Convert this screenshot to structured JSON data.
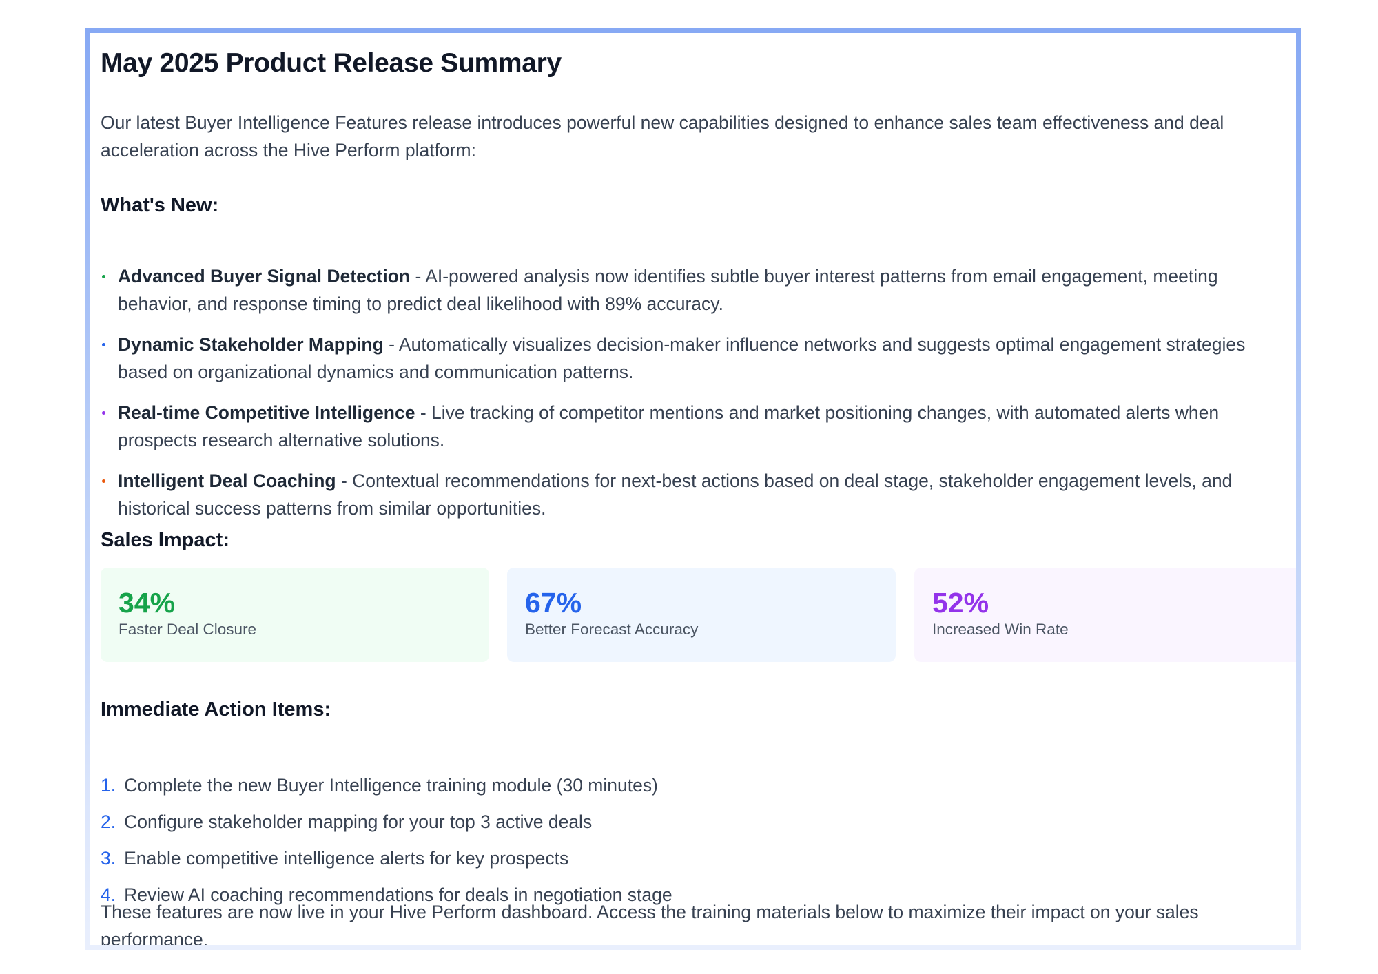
{
  "title": "May 2025 Product Release Summary",
  "intro": "Our latest Buyer Intelligence Features release introduces powerful new capabilities designed to enhance sales team effectiveness and deal acceleration across the Hive Perform platform:",
  "whats_new": {
    "heading": "What's New:",
    "items": [
      {
        "name": "Advanced Buyer Signal Detection",
        "text": " - AI-powered analysis now identifies subtle buyer interest patterns from email engagement, meeting behavior, and response timing to predict deal likelihood with 89% accuracy.",
        "bullet_color": "#16a34a"
      },
      {
        "name": "Dynamic Stakeholder Mapping",
        "text": " - Automatically visualizes decision-maker influence networks and suggests optimal engagement strategies based on organizational dynamics and communication patterns.",
        "bullet_color": "#2563eb"
      },
      {
        "name": "Real-time Competitive Intelligence",
        "text": " - Live tracking of competitor mentions and market positioning changes, with automated alerts when prospects research alternative solutions.",
        "bullet_color": "#9333ea"
      },
      {
        "name": "Intelligent Deal Coaching",
        "text": " - Contextual recommendations for next-best actions based on deal stage, stakeholder engagement levels, and historical success patterns from similar opportunities.",
        "bullet_color": "#ea580c"
      }
    ]
  },
  "sales_impact": {
    "heading": "Sales Impact:",
    "stats": [
      {
        "value": "34%",
        "label": "Faster Deal Closure",
        "color": "#16a34a",
        "bg": "#f0fdf4"
      },
      {
        "value": "67%",
        "label": "Better Forecast Accuracy",
        "color": "#2563eb",
        "bg": "#eff6ff"
      },
      {
        "value": "52%",
        "label": "Increased Win Rate",
        "color": "#9333ea",
        "bg": "#faf5ff"
      }
    ]
  },
  "action_items": {
    "heading": "Immediate Action Items:",
    "items": [
      {
        "num": "1.",
        "text": "Complete the new Buyer Intelligence training module (30 minutes)"
      },
      {
        "num": "2.",
        "text": "Configure stakeholder mapping for your top 3 active deals"
      },
      {
        "num": "3.",
        "text": "Enable competitive intelligence alerts for key prospects"
      },
      {
        "num": "4.",
        "text": "Review AI coaching recommendations for deals in negotiation stage"
      }
    ]
  },
  "closing": "These features are now live in your Hive Perform dashboard. Access the training materials below to maximize their impact on your sales performance."
}
